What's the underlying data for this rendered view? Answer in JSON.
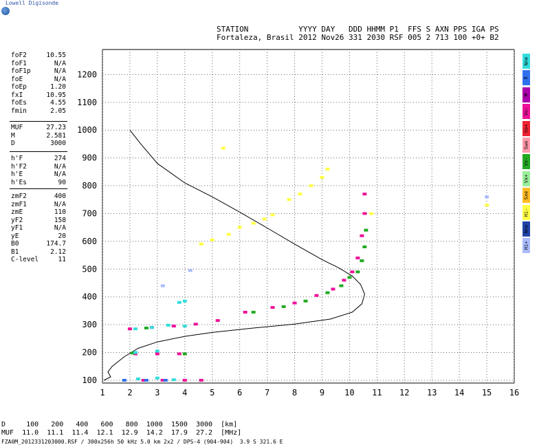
{
  "brand": "Lowell Digisonde",
  "header": {
    "line1": "STATION           YYYY DAY   DDD HHMM P1  FFS S AXN PPS IGA PS",
    "line2": "Fortaleza, Brasil 2012 Nov26 331 2030 RSF 005 2 713 100 +0+ B2"
  },
  "params_group1": [
    {
      "k": "foF2",
      "v": "10.55"
    },
    {
      "k": "foF1",
      "v": "N/A"
    },
    {
      "k": "foF1p",
      "v": "N/A"
    },
    {
      "k": "foE",
      "v": "N/A"
    },
    {
      "k": "foEp",
      "v": "1.20"
    },
    {
      "k": "fxI",
      "v": "10.95"
    },
    {
      "k": "foEs",
      "v": "4.55"
    },
    {
      "k": "fmin",
      "v": "2.05"
    }
  ],
  "params_group2": [
    {
      "k": "MUF",
      "v": "27.23"
    },
    {
      "k": "M",
      "v": "2.581"
    },
    {
      "k": "D",
      "v": "3000"
    }
  ],
  "params_group3": [
    {
      "k": "h'F",
      "v": "274"
    },
    {
      "k": "h'F2",
      "v": "N/A"
    },
    {
      "k": "h'E",
      "v": "N/A"
    },
    {
      "k": "h'Es",
      "v": "90"
    }
  ],
  "params_group4": [
    {
      "k": "zmF2",
      "v": "400"
    },
    {
      "k": "zmF1",
      "v": "N/A"
    },
    {
      "k": "zmE",
      "v": "110"
    },
    {
      "k": "yF2",
      "v": "158"
    },
    {
      "k": "yF1",
      "v": "N/A"
    },
    {
      "k": "yE",
      "v": "20"
    },
    {
      "k": "B0",
      "v": "174.7"
    },
    {
      "k": "B1",
      "v": "2.12"
    },
    {
      "k": "C-level",
      "v": "11"
    }
  ],
  "legend": [
    {
      "label": "Nne",
      "color": "#33dddd"
    },
    {
      "label": "E",
      "color": "#3070ee"
    },
    {
      "label": "W",
      "color": "#aa00aa"
    },
    {
      "label": "Vo-",
      "color": "#ee1199"
    },
    {
      "label": "Vo+",
      "color": "#ee2233"
    },
    {
      "label": "Swo",
      "color": "#ff99aa"
    },
    {
      "label": "Vx-",
      "color": "#22aa22"
    },
    {
      "label": "Vx+",
      "color": "#99ee99"
    },
    {
      "label": "Sxe",
      "color": "#ffbb22"
    },
    {
      "label": "Hi-",
      "color": "#ffff44"
    },
    {
      "label": "Nnx",
      "color": "#2244aa"
    },
    {
      "label": "Hi+",
      "color": "#aabbff"
    }
  ],
  "bottom_table": {
    "row1": "D     100   200   400   600   800  1000  1500  3000  [km]",
    "row2": "MUF  11.0  11.1  11.4  12.1  12.9  14.2  17.9  27.2  [MHz]"
  },
  "footer": "FZA0M_2012331203000.RSF / 300x256h 50 kHz 5.0 km 2x2 / DPS-4 (904-904)  3.9 S 321.6 E",
  "chart_data": {
    "type": "scatter",
    "title": "",
    "xlabel": "",
    "ylabel": "",
    "xlim": [
      1,
      16
    ],
    "ylim": [
      90,
      1290
    ],
    "x_ticks": [
      "1",
      "2",
      "3",
      "4",
      "5",
      "6",
      "7",
      "8",
      "9",
      "10",
      "11",
      "12",
      "13",
      "14",
      "15",
      "16"
    ],
    "y_ticks": [
      "100",
      "200",
      "300",
      "400",
      "500",
      "600",
      "700",
      "800",
      "900",
      "1000",
      "1100",
      "1200"
    ],
    "grid": true,
    "series": [
      {
        "name": "Vo-",
        "color": "#ee1199",
        "points": [
          [
            2.0,
            285
          ],
          [
            2.8,
            290
          ],
          [
            3.6,
            295
          ],
          [
            4.4,
            302
          ],
          [
            5.2,
            315
          ],
          [
            6.2,
            345
          ],
          [
            7.2,
            362
          ],
          [
            8.0,
            378
          ],
          [
            8.8,
            405
          ],
          [
            9.4,
            428
          ],
          [
            9.8,
            460
          ],
          [
            10.1,
            490
          ],
          [
            10.3,
            540
          ],
          [
            10.45,
            620
          ],
          [
            10.55,
            700
          ],
          [
            10.55,
            770
          ],
          [
            2.2,
            195
          ],
          [
            3.0,
            195
          ],
          [
            3.8,
            195
          ],
          [
            2.5,
            100
          ],
          [
            3.2,
            100
          ],
          [
            4.0,
            100
          ],
          [
            4.6,
            100
          ]
        ]
      },
      {
        "name": "Vx-",
        "color": "#22aa22",
        "points": [
          [
            6.5,
            345
          ],
          [
            7.6,
            365
          ],
          [
            8.4,
            385
          ],
          [
            9.2,
            415
          ],
          [
            9.7,
            440
          ],
          [
            10.0,
            470
          ],
          [
            10.3,
            490
          ],
          [
            10.45,
            530
          ],
          [
            10.55,
            580
          ],
          [
            10.6,
            640
          ],
          [
            2.1,
            198
          ],
          [
            4.0,
            195
          ],
          [
            2.6,
            288
          ]
        ]
      },
      {
        "name": "Nne",
        "color": "#33dddd",
        "points": [
          [
            2.2,
            285
          ],
          [
            2.8,
            290
          ],
          [
            3.4,
            298
          ],
          [
            4.0,
            295
          ],
          [
            2.3,
            105
          ],
          [
            3.0,
            108
          ],
          [
            3.6,
            102
          ],
          [
            2.2,
            200
          ],
          [
            3.0,
            205
          ],
          [
            3.8,
            380
          ],
          [
            4.0,
            385
          ]
        ]
      },
      {
        "name": "Hi-",
        "color": "#ffff44",
        "points": [
          [
            4.6,
            590
          ],
          [
            5.0,
            605
          ],
          [
            5.6,
            625
          ],
          [
            6.0,
            650
          ],
          [
            6.5,
            665
          ],
          [
            6.9,
            680
          ],
          [
            7.2,
            695
          ],
          [
            7.8,
            750
          ],
          [
            8.2,
            770
          ],
          [
            8.6,
            800
          ],
          [
            9.0,
            830
          ],
          [
            9.2,
            860
          ],
          [
            5.4,
            935
          ],
          [
            15.0,
            730
          ],
          [
            10.8,
            700
          ]
        ]
      },
      {
        "name": "E",
        "color": "#3070ee",
        "points": [
          [
            1.8,
            100
          ],
          [
            2.6,
            100
          ],
          [
            3.3,
            100
          ]
        ]
      },
      {
        "name": "Hi+",
        "color": "#aabbff",
        "points": [
          [
            3.2,
            440
          ],
          [
            4.2,
            495
          ],
          [
            15.0,
            760
          ]
        ]
      }
    ],
    "profile_curve": [
      [
        2.0,
        1000
      ],
      [
        2.4,
        950
      ],
      [
        3.0,
        880
      ],
      [
        4.0,
        810
      ],
      [
        5.0,
        760
      ],
      [
        6.0,
        705
      ],
      [
        7.0,
        648
      ],
      [
        8.0,
        590
      ],
      [
        9.0,
        534
      ],
      [
        9.6,
        505
      ],
      [
        10.1,
        475
      ],
      [
        10.4,
        445
      ],
      [
        10.55,
        410
      ],
      [
        10.45,
        375
      ],
      [
        10.1,
        345
      ],
      [
        9.3,
        320
      ],
      [
        8.0,
        302
      ],
      [
        6.5,
        288
      ],
      [
        5.0,
        272
      ],
      [
        4.0,
        258
      ],
      [
        3.0,
        238
      ],
      [
        2.3,
        215
      ],
      [
        1.8,
        185
      ],
      [
        1.35,
        150
      ],
      [
        1.2,
        130
      ],
      [
        1.3,
        112
      ],
      [
        1.05,
        100
      ]
    ]
  }
}
